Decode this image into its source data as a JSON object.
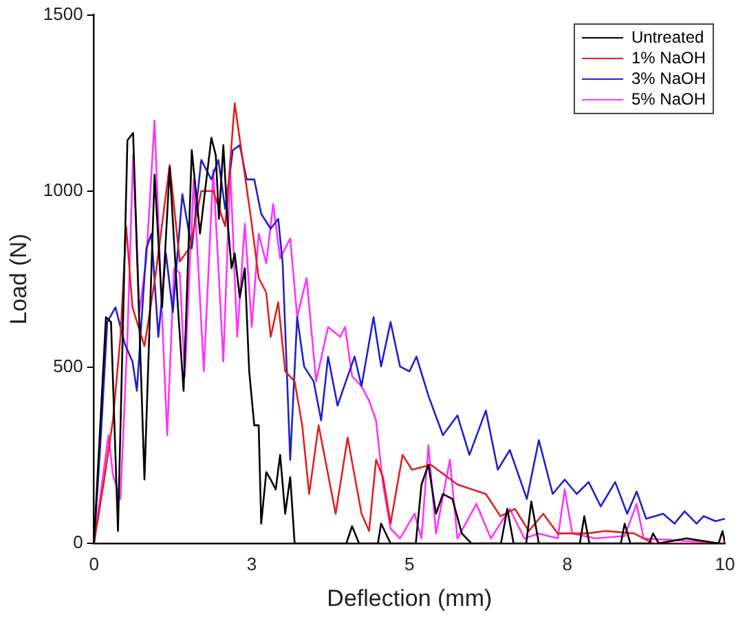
{
  "chart_data": {
    "type": "line",
    "xlabel": "Deflection (mm)",
    "ylabel": "Load (N)",
    "xlim": [
      0,
      10
    ],
    "xticks": [
      0,
      {
        "value": 2.5,
        "label": "3"
      },
      5,
      {
        "value": 7.5,
        "label": "8"
      },
      10
    ],
    "ylim": [
      0,
      1500
    ],
    "yticks": [
      0,
      500,
      1000,
      1500
    ],
    "grid": false,
    "legend": "top right",
    "marker": "none",
    "line_style": "solid",
    "series": [
      {
        "name": "Untreated",
        "color": "#000000",
        "x": [
          0,
          0.19,
          0.27,
          0.38,
          0.53,
          0.62,
          0.8,
          0.96,
          1.08,
          1.2,
          1.33,
          1.42,
          1.55,
          1.68,
          1.86,
          1.93,
          1.98,
          2.05,
          2.12,
          2.18,
          2.23,
          2.31,
          2.39,
          2.46,
          2.54,
          2.61,
          2.65,
          2.73,
          2.8,
          2.88,
          2.95,
          3.03,
          3.11,
          3.18,
          4.0,
          4.09,
          4.2,
          4.5,
          4.55,
          4.7,
          5.1,
          5.19,
          5.3,
          5.42,
          5.53,
          5.68,
          5.83,
          5.98,
          6.45,
          6.55,
          6.65,
          6.85,
          6.93,
          7.05,
          7.16,
          7.7,
          7.77,
          7.85,
          8.35,
          8.41,
          8.5,
          8.8,
          8.86,
          8.95,
          9.39,
          9.9,
          9.96,
          10
        ],
        "values": [
          0,
          642,
          628,
          35,
          1144,
          1165,
          181,
          1046,
          670,
          1067,
          670,
          433,
          1116,
          879,
          1151,
          1102,
          921,
          1130,
          907,
          781,
          823,
          698,
          781,
          488,
          335,
          335,
          56,
          202,
          181,
          153,
          251,
          84,
          188,
          0,
          0,
          49,
          0,
          0,
          56,
          0,
          0,
          167,
          223,
          84,
          140,
          126,
          28,
          0,
          0,
          98,
          0,
          0,
          119,
          0,
          0,
          0,
          77,
          0,
          0,
          56,
          0,
          0,
          28,
          0,
          14,
          0,
          35,
          0
        ]
      },
      {
        "name": "1% NaOH",
        "color": "#e02020",
        "x": [
          0,
          0.15,
          0.3,
          0.42,
          0.51,
          0.61,
          0.8,
          0.98,
          1.2,
          1.36,
          1.52,
          1.7,
          1.89,
          2.08,
          2.23,
          2.5,
          2.61,
          2.73,
          2.8,
          2.92,
          3.03,
          3.18,
          3.3,
          3.41,
          3.56,
          3.83,
          4.02,
          4.24,
          4.36,
          4.47,
          4.58,
          4.7,
          4.89,
          5.04,
          5.34,
          5.76,
          6.21,
          6.44,
          6.67,
          6.89,
          7.12,
          7.35,
          7.8,
          8.11,
          8.56,
          8.86,
          10
        ],
        "values": [
          0,
          167,
          349,
          586,
          900,
          670,
          560,
          767,
          1074,
          800,
          840,
          1000,
          1000,
          900,
          1249,
          907,
          753,
          712,
          586,
          684,
          488,
          460,
          335,
          140,
          335,
          84,
          300,
          84,
          35,
          237,
          188,
          56,
          251,
          209,
          223,
          167,
          140,
          77,
          98,
          35,
          84,
          28,
          28,
          35,
          28,
          0,
          0
        ]
      },
      {
        "name": "3% NaOH",
        "color": "#1f1fcf",
        "x": [
          0,
          0.11,
          0.21,
          0.34,
          0.49,
          0.61,
          0.68,
          0.83,
          0.91,
          1.02,
          1.14,
          1.25,
          1.4,
          1.55,
          1.7,
          1.86,
          1.97,
          2.08,
          2.2,
          2.31,
          2.42,
          2.54,
          2.65,
          2.8,
          2.92,
          2.99,
          3.11,
          3.22,
          3.33,
          3.48,
          3.6,
          3.71,
          3.86,
          4.02,
          4.13,
          4.24,
          4.43,
          4.55,
          4.7,
          4.85,
          5.0,
          5.11,
          5.3,
          5.53,
          5.76,
          5.95,
          6.21,
          6.4,
          6.59,
          6.86,
          7.05,
          7.27,
          7.46,
          7.65,
          7.84,
          8.03,
          8.26,
          8.45,
          8.6,
          8.75,
          9.02,
          9.2,
          9.36,
          9.55,
          9.66,
          9.85,
          10
        ],
        "values": [
          0,
          307,
          628,
          670,
          565,
          516,
          433,
          837,
          879,
          586,
          823,
          656,
          991,
          837,
          1088,
          1033,
          1088,
          949,
          1116,
          1130,
          1033,
          1033,
          935,
          893,
          921,
          795,
          237,
          642,
          502,
          460,
          349,
          530,
          391,
          474,
          530,
          446,
          642,
          502,
          628,
          502,
          488,
          530,
          419,
          307,
          363,
          251,
          377,
          209,
          265,
          126,
          293,
          140,
          181,
          140,
          174,
          105,
          174,
          84,
          147,
          70,
          84,
          56,
          91,
          56,
          77,
          63,
          70
        ]
      },
      {
        "name": "5% NaOH",
        "color": "#ff33ff",
        "x": [
          0,
          0.23,
          0.3,
          0.42,
          0.53,
          0.62,
          0.72,
          0.83,
          0.96,
          1.06,
          1.16,
          1.27,
          1.36,
          1.44,
          1.58,
          1.74,
          1.89,
          2.05,
          2.16,
          2.27,
          2.39,
          2.5,
          2.61,
          2.73,
          2.84,
          2.95,
          3.11,
          3.22,
          3.37,
          3.52,
          3.71,
          3.9,
          3.98,
          4.09,
          4.24,
          4.36,
          4.47,
          4.58,
          4.7,
          4.85,
          5.08,
          5.19,
          5.3,
          5.42,
          5.64,
          5.76,
          6.06,
          6.29,
          6.59,
          6.82,
          7.05,
          7.35,
          7.46,
          7.58,
          7.95,
          8.41,
          8.6,
          8.71,
          10
        ],
        "values": [
          0,
          307,
          195,
          126,
          586,
          1102,
          656,
          809,
          1200,
          726,
          307,
          781,
          767,
          474,
          1033,
          488,
          1060,
          516,
          1060,
          586,
          907,
          614,
          879,
          795,
          963,
          809,
          865,
          642,
          753,
          460,
          614,
          586,
          614,
          474,
          446,
          405,
          349,
          167,
          42,
          14,
          84,
          14,
          279,
          28,
          237,
          14,
          112,
          14,
          98,
          14,
          28,
          14,
          153,
          28,
          14,
          21,
          112,
          14,
          0
        ]
      }
    ]
  }
}
